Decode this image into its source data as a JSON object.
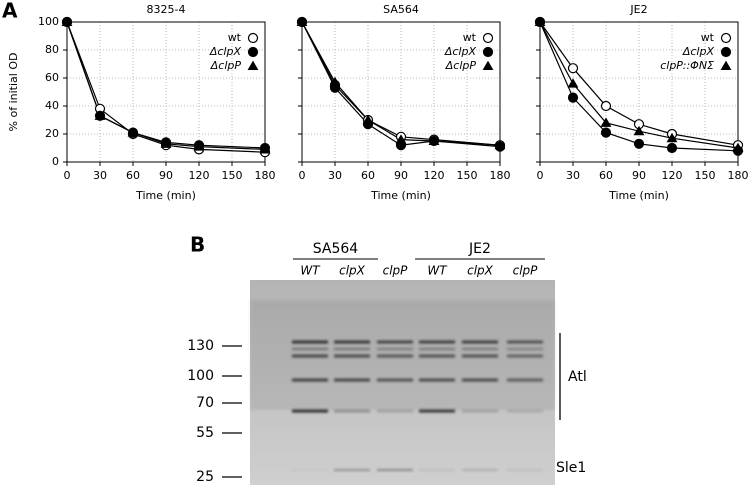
{
  "panel_labels": [
    "A",
    "B"
  ],
  "chart_data": [
    {
      "type": "line",
      "title": "8325-4",
      "x_label": "Time (min)",
      "y_label": "% of initial OD",
      "x": [
        0,
        30,
        60,
        90,
        120,
        180
      ],
      "xlim": [
        0,
        180
      ],
      "xticks": [
        0,
        30,
        60,
        90,
        120,
        150,
        180
      ],
      "ylim": [
        0,
        100
      ],
      "yticks": [
        0,
        20,
        40,
        60,
        80,
        100
      ],
      "grid": true,
      "legend": "upper right",
      "series": [
        {
          "name": "wt",
          "color": "#000000",
          "marker": "open-circle",
          "values": [
            100,
            38,
            20,
            12,
            9,
            7
          ]
        },
        {
          "name": "ΔclpX",
          "color": "#000000",
          "marker": "circle",
          "values": [
            100,
            33,
            21,
            14,
            12,
            10
          ]
        },
        {
          "name": "ΔclpP",
          "color": "#000000",
          "marker": "triangle",
          "values": [
            100,
            33,
            21,
            13,
            11,
            9
          ]
        }
      ]
    },
    {
      "type": "line",
      "title": "SA564",
      "x_label": "Time (min)",
      "x": [
        0,
        30,
        60,
        90,
        120,
        180
      ],
      "xlim": [
        0,
        180
      ],
      "xticks": [
        0,
        30,
        60,
        90,
        120,
        150,
        180
      ],
      "ylim": [
        0,
        100
      ],
      "yticks": [
        0,
        20,
        40,
        60,
        80,
        100
      ],
      "grid": true,
      "legend": "upper right",
      "series": [
        {
          "name": "wt",
          "color": "#000000",
          "marker": "open-circle",
          "values": [
            100,
            55,
            30,
            18,
            16,
            12
          ]
        },
        {
          "name": "ΔclpX",
          "color": "#000000",
          "marker": "circle",
          "values": [
            100,
            53,
            27,
            12,
            15,
            11
          ]
        },
        {
          "name": "ΔclpP",
          "color": "#000000",
          "marker": "triangle",
          "values": [
            100,
            57,
            30,
            16,
            15,
            12
          ]
        }
      ]
    },
    {
      "type": "line",
      "title": "JE2",
      "x_label": "Time (min)",
      "x": [
        0,
        30,
        60,
        90,
        120,
        180
      ],
      "xlim": [
        0,
        180
      ],
      "xticks": [
        0,
        30,
        60,
        90,
        120,
        150,
        180
      ],
      "ylim": [
        0,
        100
      ],
      "yticks": [
        0,
        20,
        40,
        60,
        80,
        100
      ],
      "grid": true,
      "legend": "upper right",
      "series": [
        {
          "name": "wt",
          "color": "#000000",
          "marker": "open-circle",
          "values": [
            100,
            67,
            40,
            27,
            20,
            12
          ]
        },
        {
          "name": "ΔclpX",
          "color": "#000000",
          "marker": "circle",
          "values": [
            100,
            46,
            21,
            13,
            10,
            8
          ]
        },
        {
          "name": "clpP::ΦNΣ",
          "color": "#000000",
          "marker": "triangle",
          "values": [
            100,
            56,
            28,
            22,
            17,
            10
          ]
        }
      ]
    }
  ],
  "blot": {
    "groups": [
      {
        "label": "SA564",
        "lanes": [
          "WT",
          "clpX",
          "clpP"
        ]
      },
      {
        "label": "JE2",
        "lanes": [
          "WT",
          "clpX",
          "clpP"
        ]
      }
    ],
    "markers": [
      "130",
      "100",
      "70",
      "55",
      "25"
    ],
    "annotations": [
      "Atl",
      "Sle1"
    ]
  }
}
